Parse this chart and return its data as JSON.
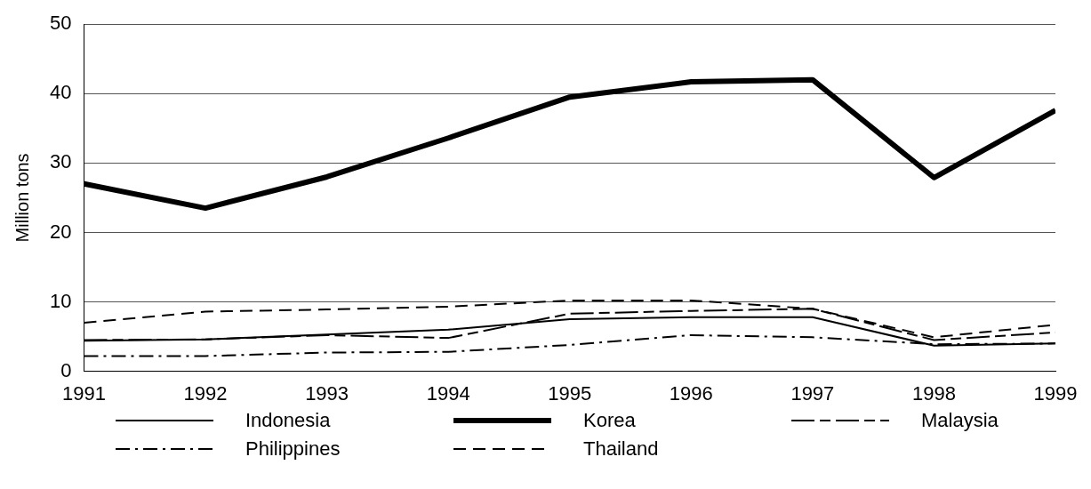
{
  "chart_data": {
    "type": "line",
    "ylabel": "Million tons",
    "x": [
      1991,
      1992,
      1993,
      1994,
      1995,
      1996,
      1997,
      1998,
      1999
    ],
    "xlim": [
      1991,
      1999
    ],
    "xticks": [
      1991,
      1992,
      1993,
      1994,
      1995,
      1996,
      1997,
      1998,
      1999
    ],
    "ylim": [
      0,
      50
    ],
    "yticks": [
      0,
      10,
      20,
      30,
      40,
      50
    ],
    "grid": "y",
    "legend": "bottom",
    "marker": "none",
    "series": [
      {
        "name": "Indonesia",
        "color": "#000000",
        "line_style": "solid",
        "values": [
          4.4,
          4.6,
          5.3,
          6,
          7.5,
          7.8,
          7.8,
          3.7,
          4
        ]
      },
      {
        "name": "Korea",
        "color": "#000000",
        "line_style": "solid",
        "values": [
          27,
          23.5,
          28,
          33.6,
          39.5,
          41.7,
          42,
          27.9,
          37.6
        ]
      },
      {
        "name": "Malaysia",
        "color": "#000000",
        "line_style": "longdash",
        "values": [
          4.5,
          4.6,
          5.2,
          4.8,
          8.3,
          8.7,
          9,
          4.5,
          5.6
        ]
      },
      {
        "name": "Philippines",
        "color": "#000000",
        "line_style": "dashdot",
        "values": [
          2.2,
          2.2,
          2.7,
          2.8,
          3.8,
          5.2,
          4.9,
          3.9,
          4
        ]
      },
      {
        "name": "Thailand",
        "color": "#000000",
        "line_style": "dashed",
        "values": [
          7,
          8.6,
          8.9,
          9.3,
          10.2,
          10.2,
          9,
          4.9,
          6.7
        ]
      }
    ]
  }
}
